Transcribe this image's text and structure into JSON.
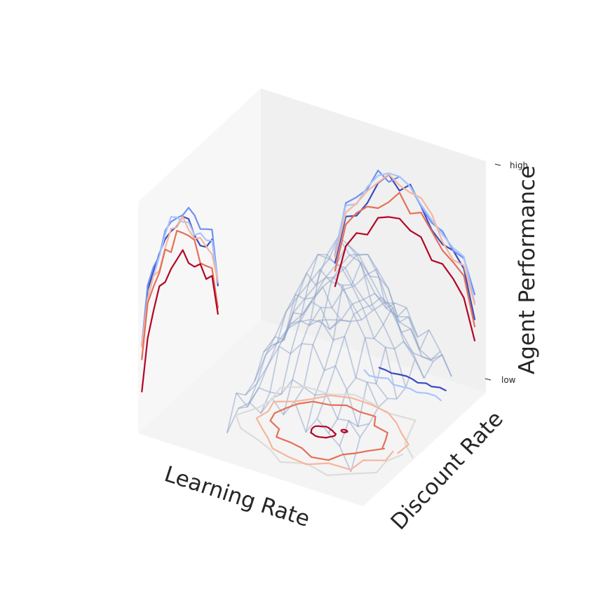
{
  "chart_data": {
    "type": "surface-3d",
    "title": "",
    "xlabel": "Learning Rate",
    "ylabel": "Discount Rate",
    "zlabel": "Agent Performance",
    "z_ticks": [
      "low",
      "high"
    ],
    "colormap": [
      "#3b4cc0",
      "#6f91f2",
      "#a8c5fe",
      "#dddcdb",
      "#f6b69b",
      "#e57058",
      "#b40426"
    ],
    "wire_color": "#8aa0c8",
    "pane_colors": {
      "left": "#f7f7f7",
      "back": "#f0f0f0",
      "floor": "#f4f4f4"
    },
    "surface_note": "noisy dome over the learning-rate × discount-rate grid, wireframe with blue tint"
  }
}
